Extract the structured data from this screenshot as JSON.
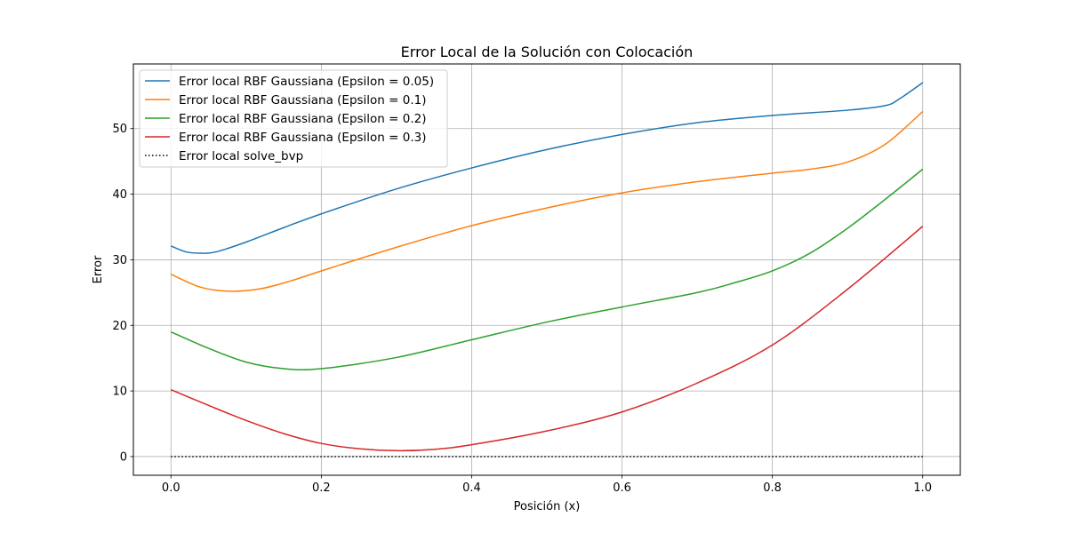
{
  "chart_data": {
    "type": "line",
    "title": "Error Local de la Solución con Colocación",
    "xlabel": "Posición (x)",
    "ylabel": "Error",
    "xlim": [
      -0.05,
      1.05
    ],
    "ylim": [
      -2.85,
      59.85
    ],
    "xticks": [
      0.0,
      0.2,
      0.4,
      0.6,
      0.8,
      1.0
    ],
    "xtick_labels": [
      "0.0",
      "0.2",
      "0.4",
      "0.6",
      "0.8",
      "1.0"
    ],
    "yticks": [
      0,
      10,
      20,
      30,
      40,
      50
    ],
    "ytick_labels": [
      "0",
      "10",
      "20",
      "30",
      "40",
      "50"
    ],
    "grid": true,
    "legend_position": "top-left",
    "series": [
      {
        "name": "Error local RBF Gaussiana (Epsilon = 0.05)",
        "color": "#1f77b4",
        "style": "solid",
        "x": [
          0.0,
          0.02,
          0.04,
          0.06,
          0.1,
          0.15,
          0.2,
          0.3,
          0.4,
          0.5,
          0.6,
          0.7,
          0.8,
          0.9,
          0.95,
          0.97,
          1.0
        ],
        "y": [
          32.1,
          31.2,
          31.0,
          31.2,
          32.7,
          34.9,
          37.0,
          40.8,
          44.0,
          46.8,
          49.1,
          50.9,
          52.0,
          52.8,
          53.5,
          54.6,
          57.0
        ]
      },
      {
        "name": "Error local RBF Gaussiana (Epsilon = 0.1)",
        "color": "#ff7f0e",
        "style": "solid",
        "x": [
          0.0,
          0.04,
          0.08,
          0.12,
          0.16,
          0.2,
          0.3,
          0.4,
          0.5,
          0.6,
          0.7,
          0.8,
          0.85,
          0.9,
          0.95,
          1.0
        ],
        "y": [
          27.8,
          25.8,
          25.2,
          25.6,
          26.8,
          28.3,
          31.9,
          35.2,
          37.9,
          40.2,
          41.9,
          43.2,
          43.8,
          44.9,
          47.6,
          52.6
        ]
      },
      {
        "name": "Error local RBF Gaussiana (Epsilon = 0.2)",
        "color": "#2ca02c",
        "style": "solid",
        "x": [
          0.0,
          0.05,
          0.1,
          0.15,
          0.2,
          0.3,
          0.4,
          0.5,
          0.6,
          0.7,
          0.75,
          0.8,
          0.85,
          0.9,
          0.95,
          1.0
        ],
        "y": [
          19.0,
          16.5,
          14.4,
          13.4,
          13.4,
          15.1,
          17.8,
          20.5,
          22.8,
          25.0,
          26.5,
          28.3,
          31.0,
          34.8,
          39.2,
          43.8
        ]
      },
      {
        "name": "Error local RBF Gaussiana (Epsilon = 0.3)",
        "color": "#d62728",
        "style": "solid",
        "x": [
          0.0,
          0.05,
          0.1,
          0.15,
          0.2,
          0.25,
          0.3,
          0.35,
          0.4,
          0.5,
          0.6,
          0.7,
          0.8,
          0.9,
          1.0
        ],
        "y": [
          10.2,
          7.8,
          5.5,
          3.5,
          2.0,
          1.2,
          0.9,
          1.1,
          1.8,
          3.9,
          6.8,
          11.2,
          17.0,
          25.5,
          35.1
        ]
      },
      {
        "name": "Error local solve_bvp",
        "color": "#000000",
        "style": "dotted",
        "x": [
          0.0,
          1.0
        ],
        "y": [
          0.0,
          0.0
        ]
      }
    ]
  }
}
